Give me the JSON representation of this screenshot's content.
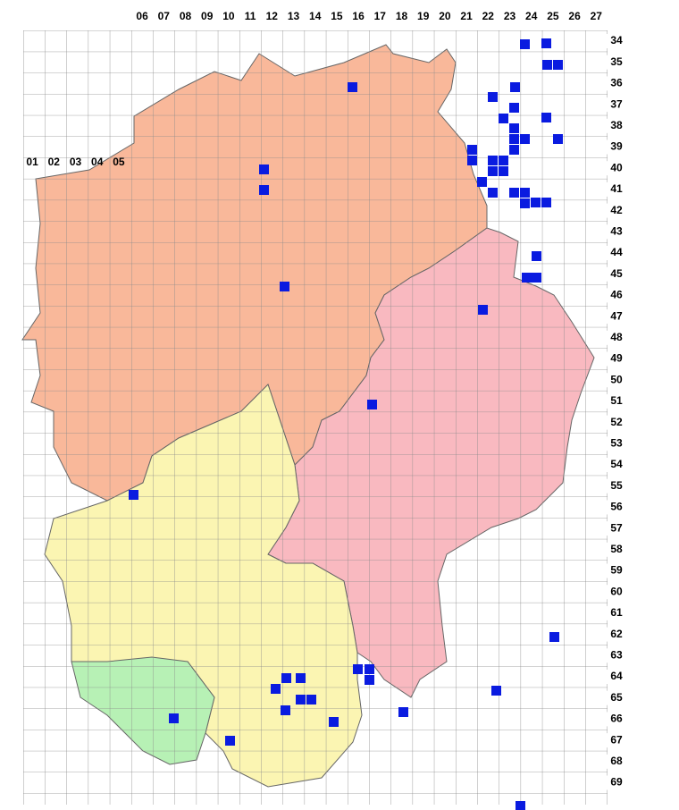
{
  "column_labels_top": [
    "06",
    "07",
    "08",
    "09",
    "10",
    "11",
    "12",
    "13",
    "14",
    "15",
    "16",
    "17",
    "18",
    "19",
    "20",
    "21",
    "22",
    "23",
    "24",
    "25",
    "26",
    "27"
  ],
  "column_labels_left": [
    "01",
    "02",
    "03",
    "04",
    "05"
  ],
  "row_labels": [
    "34",
    "35",
    "36",
    "37",
    "38",
    "39",
    "40",
    "41",
    "42",
    "43",
    "44",
    "45",
    "46",
    "47",
    "48",
    "49",
    "50",
    "51",
    "52",
    "53",
    "54",
    "55",
    "56",
    "57",
    "58",
    "59",
    "60",
    "61",
    "62",
    "63",
    "64",
    "65",
    "66",
    "67",
    "68",
    "69"
  ]
}
